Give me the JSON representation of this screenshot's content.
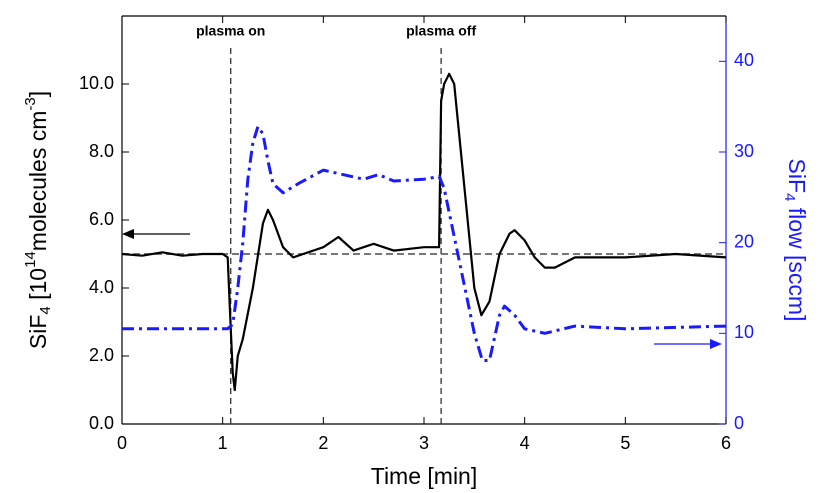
{
  "chart_data": {
    "type": "line",
    "xlabel": "Time [min]",
    "ylabel": [
      "SiF",
      "4",
      " [10",
      "14",
      "molecules cm",
      "-3",
      "]"
    ],
    "y2label": [
      "SiF",
      "4",
      " flow [sccm]"
    ],
    "xlim": [
      0,
      6
    ],
    "xticks": [
      0,
      1,
      2,
      3,
      4,
      5,
      6
    ],
    "ylim": [
      0,
      12
    ],
    "yticks": [
      {
        "value": 0,
        "label": "0.0"
      },
      {
        "value": 2,
        "label": "2.0"
      },
      {
        "value": 4,
        "label": "4.0"
      },
      {
        "value": 6,
        "label": "6.0"
      },
      {
        "value": 8,
        "label": "8.0"
      },
      {
        "value": 10,
        "label": "10.0"
      }
    ],
    "y2lim": [
      0,
      45
    ],
    "y2ticks": [
      0,
      10,
      20,
      30,
      40
    ],
    "y2color": "#1a1aff",
    "hline": {
      "value": 5,
      "color": "#777777"
    },
    "annotations": [
      {
        "text": "plasma on",
        "x": 1.08
      },
      {
        "text": "plasma off",
        "x": 3.17
      }
    ],
    "series": [
      {
        "color": "#000000",
        "dash": "solid",
        "x": [
          0,
          0.2,
          0.4,
          0.6,
          0.8,
          1.0,
          1.05,
          1.07,
          1.1,
          1.12,
          1.15,
          1.2,
          1.3,
          1.4,
          1.45,
          1.5,
          1.6,
          1.7,
          1.8,
          2.0,
          2.15,
          2.3,
          2.5,
          2.7,
          3.0,
          3.15,
          3.17,
          3.2,
          3.25,
          3.3,
          3.4,
          3.5,
          3.57,
          3.65,
          3.75,
          3.85,
          3.9,
          4.0,
          4.1,
          4.2,
          4.3,
          4.5,
          5.0,
          5.5,
          6.0
        ],
        "values": [
          5.0,
          4.95,
          5.05,
          4.95,
          5.0,
          5.0,
          4.9,
          3.5,
          1.5,
          1.0,
          2.0,
          2.5,
          4.0,
          5.9,
          6.3,
          6.0,
          5.2,
          4.9,
          5.0,
          5.2,
          5.5,
          5.1,
          5.3,
          5.1,
          5.2,
          5.2,
          9.5,
          10.0,
          10.3,
          10.0,
          7.0,
          4.0,
          3.2,
          3.6,
          5.0,
          5.6,
          5.7,
          5.4,
          4.9,
          4.6,
          4.6,
          4.9,
          4.9,
          5.0,
          4.9
        ]
      },
      {
        "color": "#1a1aff",
        "dash": "dashdot",
        "axis": "y2",
        "x": [
          0,
          1.05,
          1.1,
          1.15,
          1.2,
          1.25,
          1.3,
          1.35,
          1.4,
          1.45,
          1.5,
          1.6,
          1.75,
          2.0,
          2.2,
          2.4,
          2.55,
          2.7,
          3.0,
          3.15,
          3.2,
          3.35,
          3.5,
          3.58,
          3.65,
          3.75,
          3.8,
          3.9,
          4.0,
          4.2,
          4.5,
          5.0,
          6.0
        ],
        "values": [
          10.5,
          10.5,
          11,
          15,
          20,
          27,
          31,
          32.8,
          32,
          29,
          26.5,
          25.5,
          26.5,
          28,
          27.5,
          27,
          27.5,
          26.8,
          27,
          27.3,
          26,
          18,
          10,
          7,
          7,
          12,
          13,
          12,
          10.5,
          10,
          10.8,
          10.5,
          10.8
        ]
      }
    ]
  }
}
